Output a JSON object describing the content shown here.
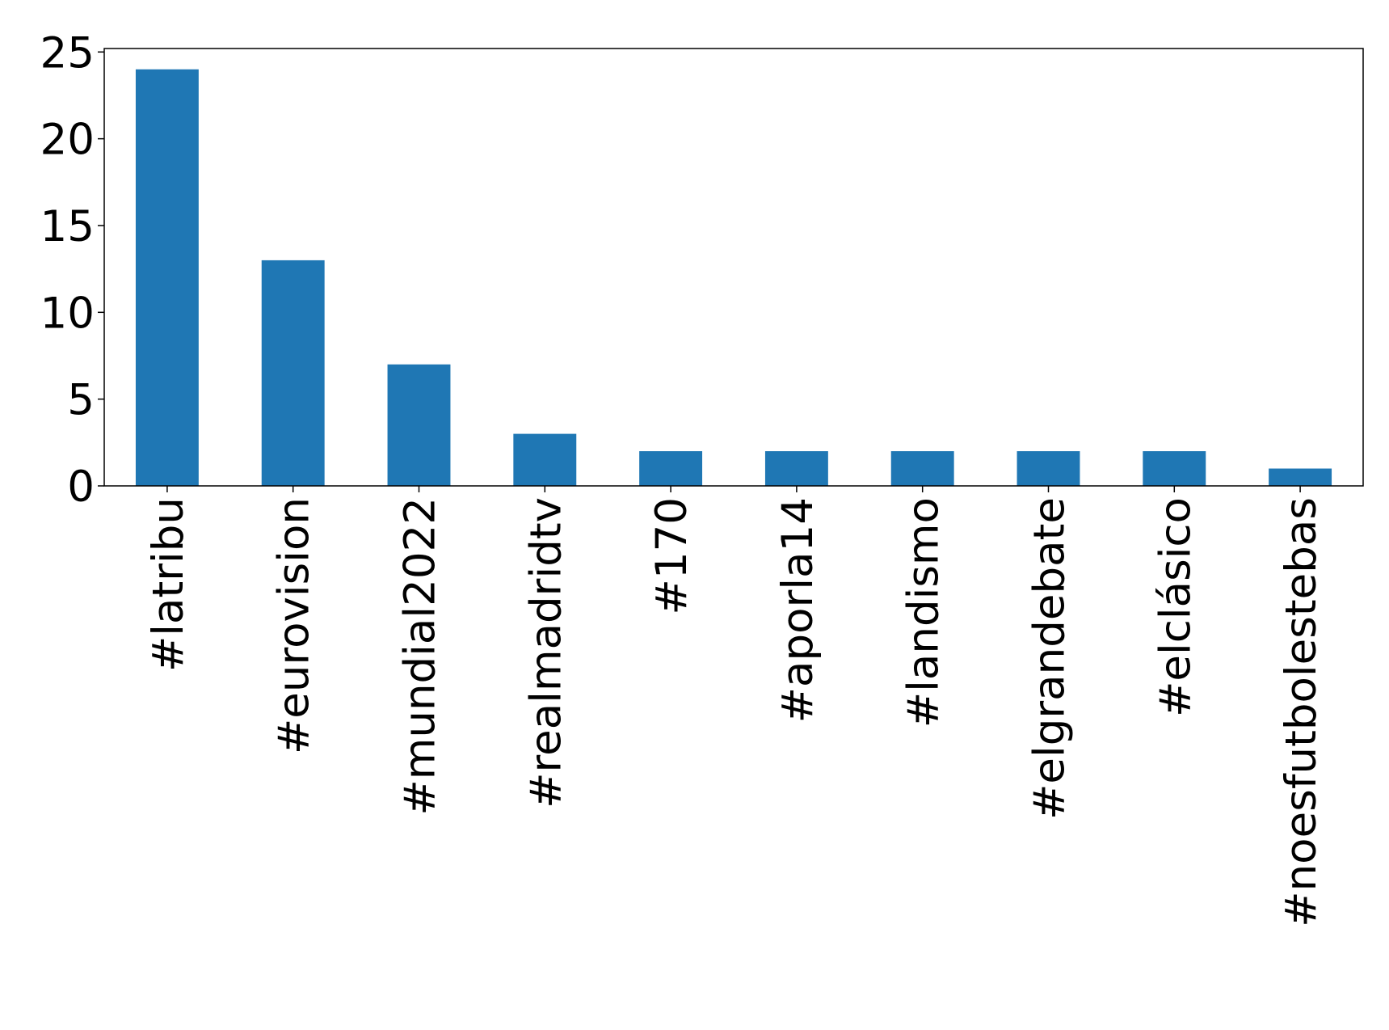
{
  "chart_data": {
    "type": "bar",
    "categories": [
      "#latribu",
      "#eurovision",
      "#mundial2022",
      "#realmadridtv",
      "#170",
      "#aporla14",
      "#landismo",
      "#elgrandebate",
      "#elclásico",
      "#noesfutbolestebas"
    ],
    "values": [
      24,
      13,
      7,
      3,
      2,
      2,
      2,
      2,
      2,
      1
    ],
    "color": "#1f77b4",
    "ylim": [
      0,
      25.2
    ],
    "yticks": [
      0,
      5,
      10,
      15,
      20,
      25
    ],
    "grid": false
  }
}
